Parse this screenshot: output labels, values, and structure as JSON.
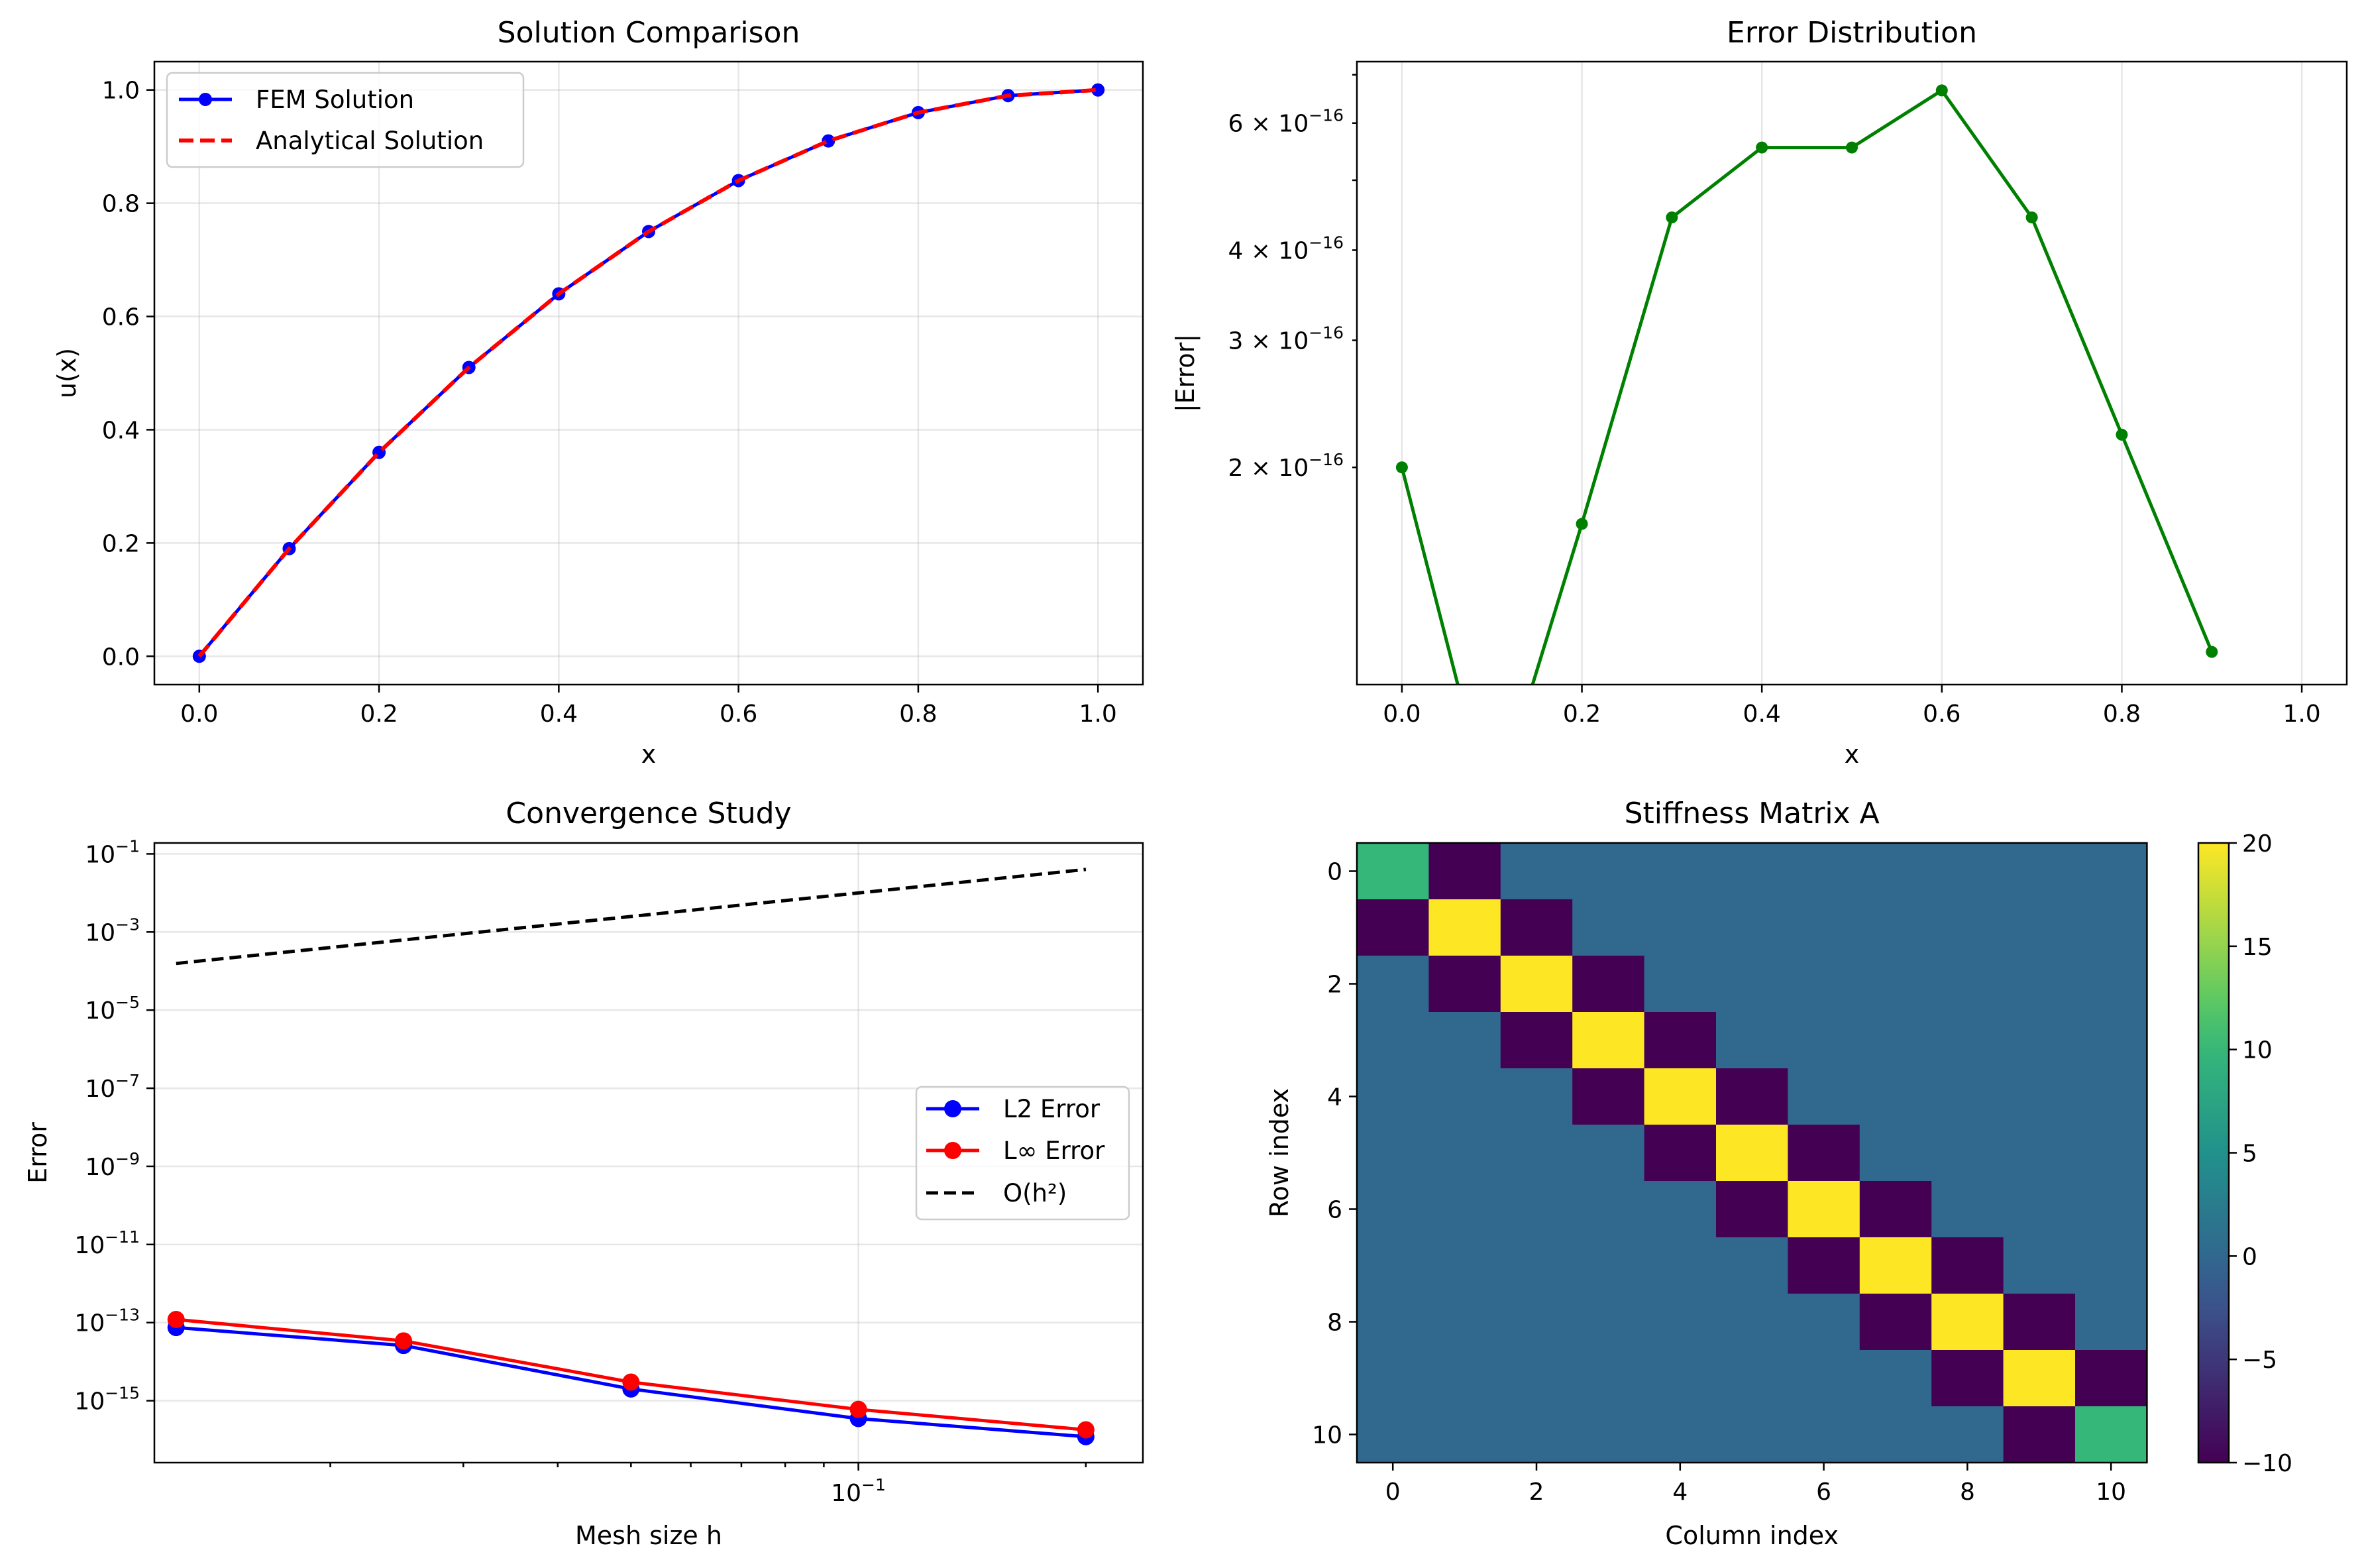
{
  "chart_data": [
    {
      "type": "line",
      "title": "Solution Comparison",
      "xlabel": "x",
      "ylabel": "u(x)",
      "xlim": [
        -0.05,
        1.05
      ],
      "ylim": [
        -0.05,
        1.05
      ],
      "xticks": [
        0.0,
        0.2,
        0.4,
        0.6,
        0.8,
        1.0
      ],
      "xtick_labels": [
        "0.0",
        "0.2",
        "0.4",
        "0.6",
        "0.8",
        "1.0"
      ],
      "yticks": [
        0.0,
        0.2,
        0.4,
        0.6,
        0.8,
        1.0
      ],
      "ytick_labels": [
        "0.0",
        "0.2",
        "0.4",
        "0.6",
        "0.8",
        "1.0"
      ],
      "grid": true,
      "legend": "upper-left",
      "x": [
        0.0,
        0.1,
        0.2,
        0.3,
        0.4,
        0.5,
        0.6,
        0.7,
        0.8,
        0.9,
        1.0
      ],
      "series": [
        {
          "name": "FEM Solution",
          "color": "#0000ff",
          "style": "solid-marker",
          "values": [
            0.0,
            0.19,
            0.36,
            0.51,
            0.64,
            0.75,
            0.84,
            0.91,
            0.96,
            0.99,
            1.0
          ]
        },
        {
          "name": "Analytical Solution",
          "color": "#ff0000",
          "style": "dashed",
          "values": [
            0.0,
            0.19,
            0.36,
            0.51,
            0.64,
            0.75,
            0.84,
            0.91,
            0.96,
            0.99,
            1.0
          ]
        }
      ]
    },
    {
      "type": "line",
      "title": "Error Distribution",
      "xlabel": "x",
      "ylabel": "|Error|",
      "yscale": "log",
      "xlim": [
        -0.05,
        1.05
      ],
      "ylim": [
        1e-16,
        7.3e-16
      ],
      "xticks": [
        0.0,
        0.2,
        0.4,
        0.6,
        0.8,
        1.0
      ],
      "xtick_labels": [
        "0.0",
        "0.2",
        "0.4",
        "0.6",
        "0.8",
        "1.0"
      ],
      "yticks": [
        2e-16,
        3e-16,
        4e-16,
        6e-16
      ],
      "ytick_labels": [
        {
          "mant": "2",
          "exp": "−16"
        },
        {
          "mant": "3",
          "exp": "−16"
        },
        {
          "mant": "4",
          "exp": "−16"
        },
        {
          "mant": "6",
          "exp": "−16"
        }
      ],
      "ytick_prefix": "× 10",
      "grid": true,
      "x": [
        0.0,
        0.1,
        0.2,
        0.3,
        0.4,
        0.5,
        0.6,
        0.7,
        0.8,
        0.9,
        1.0
      ],
      "series": [
        {
          "color": "#008000",
          "values": [
            2e-16,
            0,
            1.67e-16,
            4.44e-16,
            5.55e-16,
            5.55e-16,
            6.66e-16,
            4.44e-16,
            2.22e-16,
            1.11e-16,
            0
          ]
        }
      ]
    },
    {
      "type": "line",
      "title": "Convergence Study",
      "xlabel": "Mesh size h",
      "ylabel": "Error",
      "xscale": "log",
      "yscale": "log",
      "xlim": [
        0.0117,
        0.238
      ],
      "ylim": [
        2.6e-17,
        0.19
      ],
      "xticks": [
        0.1
      ],
      "xtick_labels": [
        {
          "base": "10",
          "exp": "−1"
        }
      ],
      "yticks": [
        1e-15,
        1e-13,
        1e-11,
        1e-09,
        1e-07,
        1e-05,
        0.001,
        0.1
      ],
      "ytick_labels": [
        {
          "base": "10",
          "exp": "−15"
        },
        {
          "base": "10",
          "exp": "−13"
        },
        {
          "base": "10",
          "exp": "−11"
        },
        {
          "base": "10",
          "exp": "−9"
        },
        {
          "base": "10",
          "exp": "−7"
        },
        {
          "base": "10",
          "exp": "−5"
        },
        {
          "base": "10",
          "exp": "−3"
        },
        {
          "base": "10",
          "exp": "−1"
        }
      ],
      "grid": true,
      "legend": "center-right",
      "x": [
        0.0125,
        0.025,
        0.05,
        0.1,
        0.2
      ],
      "series": [
        {
          "name": "L2 Error",
          "color": "#0000ff",
          "style": "solid-marker",
          "values": [
            7.5e-14,
            2.6e-14,
            2e-15,
            3.5e-16,
            1.2e-16
          ]
        },
        {
          "name": "L∞ Error",
          "color": "#ff0000",
          "style": "solid-marker",
          "values": [
            1.2e-13,
            3.4e-14,
            3e-15,
            6e-16,
            1.8e-16
          ]
        },
        {
          "name": "O(h²)",
          "color": "#000000",
          "style": "dashed",
          "values": [
            0.00015625,
            0.000625,
            0.0025,
            0.01,
            0.04
          ]
        }
      ]
    },
    {
      "type": "heatmap",
      "title": "Stiffness Matrix A",
      "xlabel": "Column index",
      "ylabel": "Row index",
      "xticks": [
        0,
        2,
        4,
        6,
        8,
        10
      ],
      "xtick_labels": [
        "0",
        "2",
        "4",
        "6",
        "8",
        "10"
      ],
      "yticks": [
        0,
        2,
        4,
        6,
        8,
        10
      ],
      "ytick_labels": [
        "0",
        "2",
        "4",
        "6",
        "8",
        "10"
      ],
      "colormap": "viridis",
      "vmin": -10,
      "vmax": 20,
      "colorbar_ticks": [
        -10,
        -5,
        0,
        5,
        10,
        15,
        20
      ],
      "colorbar_tick_labels": [
        "−10",
        "−5",
        "0",
        "5",
        "10",
        "15",
        "20"
      ],
      "matrix": [
        [
          10,
          -10,
          0,
          0,
          0,
          0,
          0,
          0,
          0,
          0,
          0
        ],
        [
          -10,
          20,
          -10,
          0,
          0,
          0,
          0,
          0,
          0,
          0,
          0
        ],
        [
          0,
          -10,
          20,
          -10,
          0,
          0,
          0,
          0,
          0,
          0,
          0
        ],
        [
          0,
          0,
          -10,
          20,
          -10,
          0,
          0,
          0,
          0,
          0,
          0
        ],
        [
          0,
          0,
          0,
          -10,
          20,
          -10,
          0,
          0,
          0,
          0,
          0
        ],
        [
          0,
          0,
          0,
          0,
          -10,
          20,
          -10,
          0,
          0,
          0,
          0
        ],
        [
          0,
          0,
          0,
          0,
          0,
          -10,
          20,
          -10,
          0,
          0,
          0
        ],
        [
          0,
          0,
          0,
          0,
          0,
          0,
          -10,
          20,
          -10,
          0,
          0
        ],
        [
          0,
          0,
          0,
          0,
          0,
          0,
          0,
          -10,
          20,
          -10,
          0
        ],
        [
          0,
          0,
          0,
          0,
          0,
          0,
          0,
          0,
          -10,
          20,
          -10
        ],
        [
          0,
          0,
          0,
          0,
          0,
          0,
          0,
          0,
          0,
          -10,
          10
        ]
      ]
    }
  ]
}
